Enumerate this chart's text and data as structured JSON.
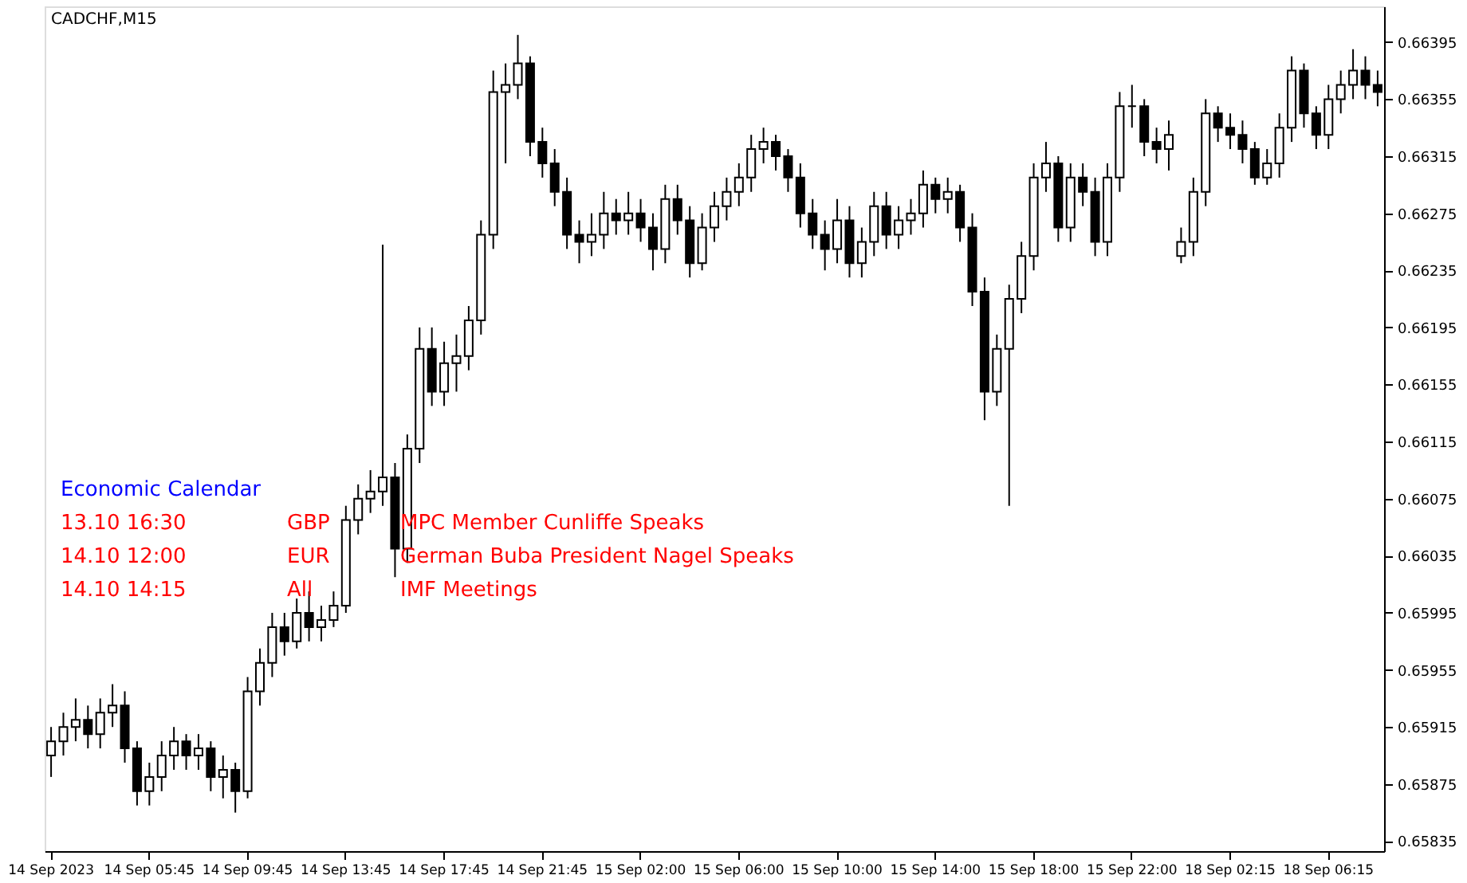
{
  "chart_data": {
    "type": "candlestick",
    "title": "CADCHF,M15",
    "annotations": [
      "Economic Calendar",
      "13.10 16:30",
      "GBP",
      "MPC Member Cunliffe Speaks",
      "14.10 12:00",
      "EUR",
      "German Buba President Nagel Speaks",
      "14.10 14:15",
      "All",
      "IMF Meetings"
    ],
    "categories": [
      "14 Sep 2023",
      null,
      null,
      null,
      null,
      null,
      null,
      null,
      "14 Sep 05:45",
      null,
      null,
      null,
      null,
      null,
      null,
      null,
      "14 Sep 09:45",
      null,
      null,
      null,
      null,
      null,
      null,
      null,
      "14 Sep 13:45",
      null,
      null,
      null,
      null,
      null,
      null,
      null,
      "14 Sep 17:45",
      null,
      null,
      null,
      null,
      null,
      null,
      null,
      "14 Sep 21:45",
      null,
      null,
      null,
      null,
      null,
      null,
      null,
      "15 Sep 02:00",
      null,
      null,
      null,
      null,
      null,
      null,
      null,
      "15 Sep 06:00",
      null,
      null,
      null,
      null,
      null,
      null,
      null,
      "15 Sep 10:00",
      null,
      null,
      null,
      null,
      null,
      null,
      null,
      "15 Sep 14:00",
      null,
      null,
      null,
      null,
      null,
      null,
      null,
      "15 Sep 18:00",
      null,
      null,
      null,
      null,
      null,
      null,
      null,
      "15 Sep 22:00",
      null,
      null,
      null,
      null,
      null,
      null,
      null,
      "18 Sep 02:15",
      null,
      null,
      null,
      null,
      null,
      null,
      null,
      "18 Sep 06:15",
      null,
      null,
      null,
      null
    ],
    "color": "#000000",
    "ohlc": [
      [
        0.65895,
        0.65915,
        0.6588,
        0.65905
      ],
      [
        0.65905,
        0.65925,
        0.65895,
        0.65915
      ],
      [
        0.65915,
        0.65935,
        0.65905,
        0.6592
      ],
      [
        0.6592,
        0.6593,
        0.659,
        0.6591
      ],
      [
        0.6591,
        0.65935,
        0.659,
        0.65925
      ],
      [
        0.65925,
        0.65945,
        0.65915,
        0.6593
      ],
      [
        0.6593,
        0.6594,
        0.6589,
        0.659
      ],
      [
        0.659,
        0.65905,
        0.6586,
        0.6587
      ],
      [
        0.6587,
        0.6589,
        0.6586,
        0.6588
      ],
      [
        0.6588,
        0.65905,
        0.6587,
        0.65895
      ],
      [
        0.65895,
        0.65915,
        0.65885,
        0.65905
      ],
      [
        0.65905,
        0.6591,
        0.65885,
        0.65895
      ],
      [
        0.65895,
        0.6591,
        0.65885,
        0.659
      ],
      [
        0.659,
        0.65905,
        0.6587,
        0.6588
      ],
      [
        0.6588,
        0.65895,
        0.65865,
        0.65885
      ],
      [
        0.65885,
        0.6589,
        0.65855,
        0.6587
      ],
      [
        0.6587,
        0.6595,
        0.65865,
        0.6594
      ],
      [
        0.6594,
        0.6597,
        0.6593,
        0.6596
      ],
      [
        0.6596,
        0.65995,
        0.6595,
        0.65985
      ],
      [
        0.65985,
        0.65995,
        0.65965,
        0.65975
      ],
      [
        0.65975,
        0.66005,
        0.6597,
        0.65995
      ],
      [
        0.65995,
        0.6601,
        0.65975,
        0.65985
      ],
      [
        0.65985,
        0.66,
        0.65975,
        0.6599
      ],
      [
        0.6599,
        0.6601,
        0.65985,
        0.66
      ],
      [
        0.66,
        0.6607,
        0.65995,
        0.6606
      ],
      [
        0.6606,
        0.66085,
        0.6605,
        0.66075
      ],
      [
        0.66075,
        0.66095,
        0.66065,
        0.6608
      ],
      [
        0.6608,
        0.66253,
        0.6607,
        0.6609
      ],
      [
        0.6609,
        0.661,
        0.6602,
        0.6604
      ],
      [
        0.6604,
        0.6612,
        0.6603,
        0.6611
      ],
      [
        0.6611,
        0.66195,
        0.661,
        0.6618
      ],
      [
        0.6618,
        0.66195,
        0.6614,
        0.6615
      ],
      [
        0.6615,
        0.66185,
        0.6614,
        0.6617
      ],
      [
        0.6617,
        0.6619,
        0.6615,
        0.66175
      ],
      [
        0.66175,
        0.6621,
        0.66165,
        0.662
      ],
      [
        0.662,
        0.6627,
        0.6619,
        0.6626
      ],
      [
        0.6626,
        0.66375,
        0.6625,
        0.6636
      ],
      [
        0.6636,
        0.6638,
        0.6631,
        0.66365
      ],
      [
        0.66365,
        0.664,
        0.66355,
        0.6638
      ],
      [
        0.6638,
        0.66385,
        0.66315,
        0.66325
      ],
      [
        0.66325,
        0.66335,
        0.663,
        0.6631
      ],
      [
        0.6631,
        0.6632,
        0.6628,
        0.6629
      ],
      [
        0.6629,
        0.663,
        0.6625,
        0.6626
      ],
      [
        0.6626,
        0.6627,
        0.6624,
        0.66255
      ],
      [
        0.66255,
        0.66275,
        0.66245,
        0.6626
      ],
      [
        0.6626,
        0.6629,
        0.6625,
        0.66275
      ],
      [
        0.66275,
        0.66285,
        0.6626,
        0.6627
      ],
      [
        0.6627,
        0.6629,
        0.6626,
        0.66275
      ],
      [
        0.66275,
        0.66285,
        0.66255,
        0.66265
      ],
      [
        0.66265,
        0.66275,
        0.66235,
        0.6625
      ],
      [
        0.6625,
        0.66295,
        0.6624,
        0.66285
      ],
      [
        0.66285,
        0.66295,
        0.6626,
        0.6627
      ],
      [
        0.6627,
        0.6628,
        0.6623,
        0.6624
      ],
      [
        0.6624,
        0.66275,
        0.66235,
        0.66265
      ],
      [
        0.66265,
        0.6629,
        0.66255,
        0.6628
      ],
      [
        0.6628,
        0.663,
        0.6627,
        0.6629
      ],
      [
        0.6629,
        0.6631,
        0.6628,
        0.663
      ],
      [
        0.663,
        0.6633,
        0.6629,
        0.6632
      ],
      [
        0.6632,
        0.66335,
        0.6631,
        0.66325
      ],
      [
        0.66325,
        0.6633,
        0.66305,
        0.66315
      ],
      [
        0.66315,
        0.6632,
        0.6629,
        0.663
      ],
      [
        0.663,
        0.6631,
        0.66265,
        0.66275
      ],
      [
        0.66275,
        0.66285,
        0.6625,
        0.6626
      ],
      [
        0.6626,
        0.6627,
        0.66235,
        0.6625
      ],
      [
        0.6625,
        0.66285,
        0.6624,
        0.6627
      ],
      [
        0.6627,
        0.6628,
        0.6623,
        0.6624
      ],
      [
        0.6624,
        0.66265,
        0.6623,
        0.66255
      ],
      [
        0.66255,
        0.6629,
        0.66245,
        0.6628
      ],
      [
        0.6628,
        0.6629,
        0.6625,
        0.6626
      ],
      [
        0.6626,
        0.6628,
        0.6625,
        0.6627
      ],
      [
        0.6627,
        0.66285,
        0.6626,
        0.66275
      ],
      [
        0.66275,
        0.66305,
        0.66265,
        0.66295
      ],
      [
        0.66295,
        0.663,
        0.66275,
        0.66285
      ],
      [
        0.66285,
        0.663,
        0.66275,
        0.6629
      ],
      [
        0.6629,
        0.66295,
        0.66255,
        0.66265
      ],
      [
        0.66265,
        0.66275,
        0.6621,
        0.6622
      ],
      [
        0.6622,
        0.6623,
        0.6613,
        0.6615
      ],
      [
        0.6615,
        0.6619,
        0.6614,
        0.6618
      ],
      [
        0.6618,
        0.66225,
        0.6607,
        0.66215
      ],
      [
        0.66215,
        0.66255,
        0.66205,
        0.66245
      ],
      [
        0.66245,
        0.6631,
        0.66235,
        0.663
      ],
      [
        0.663,
        0.66325,
        0.6629,
        0.6631
      ],
      [
        0.6631,
        0.66315,
        0.66255,
        0.66265
      ],
      [
        0.66265,
        0.6631,
        0.66255,
        0.663
      ],
      [
        0.663,
        0.6631,
        0.6628,
        0.6629
      ],
      [
        0.6629,
        0.663,
        0.66245,
        0.66255
      ],
      [
        0.66255,
        0.6631,
        0.66245,
        0.663
      ],
      [
        0.663,
        0.6636,
        0.6629,
        0.6635
      ],
      [
        0.6635,
        0.66365,
        0.66335,
        0.6635
      ],
      [
        0.6635,
        0.66355,
        0.66315,
        0.66325
      ],
      [
        0.66325,
        0.66335,
        0.6631,
        0.6632
      ],
      [
        0.6632,
        0.6634,
        0.66305,
        0.6633
      ],
      [
        0.66245,
        0.66265,
        0.6624,
        0.66255
      ],
      [
        0.66255,
        0.663,
        0.66245,
        0.6629
      ],
      [
        0.6629,
        0.66355,
        0.6628,
        0.66345
      ],
      [
        0.66345,
        0.6635,
        0.66325,
        0.66335
      ],
      [
        0.66335,
        0.66345,
        0.6632,
        0.6633
      ],
      [
        0.6633,
        0.6634,
        0.6631,
        0.6632
      ],
      [
        0.6632,
        0.66325,
        0.66295,
        0.663
      ],
      [
        0.663,
        0.6632,
        0.66295,
        0.6631
      ],
      [
        0.6631,
        0.66345,
        0.663,
        0.66335
      ],
      [
        0.66335,
        0.66385,
        0.66325,
        0.66375
      ],
      [
        0.66375,
        0.6638,
        0.66335,
        0.66345
      ],
      [
        0.66345,
        0.6635,
        0.6632,
        0.6633
      ],
      [
        0.6633,
        0.66365,
        0.6632,
        0.66355
      ],
      [
        0.66355,
        0.66375,
        0.66345,
        0.66365
      ],
      [
        0.66365,
        0.6639,
        0.66355,
        0.66375
      ],
      [
        0.66375,
        0.66385,
        0.66355,
        0.66365
      ],
      [
        0.66365,
        0.66375,
        0.6635,
        0.6636
      ]
    ],
    "ylim": [
      0.65828,
      0.6642
    ],
    "yticks": [
      0.65835,
      0.65875,
      0.65915,
      0.65955,
      0.65995,
      0.66035,
      0.66075,
      0.66115,
      0.66155,
      0.66195,
      0.66235,
      0.66275,
      0.66315,
      0.66355,
      0.66395
    ],
    "grid": false
  }
}
